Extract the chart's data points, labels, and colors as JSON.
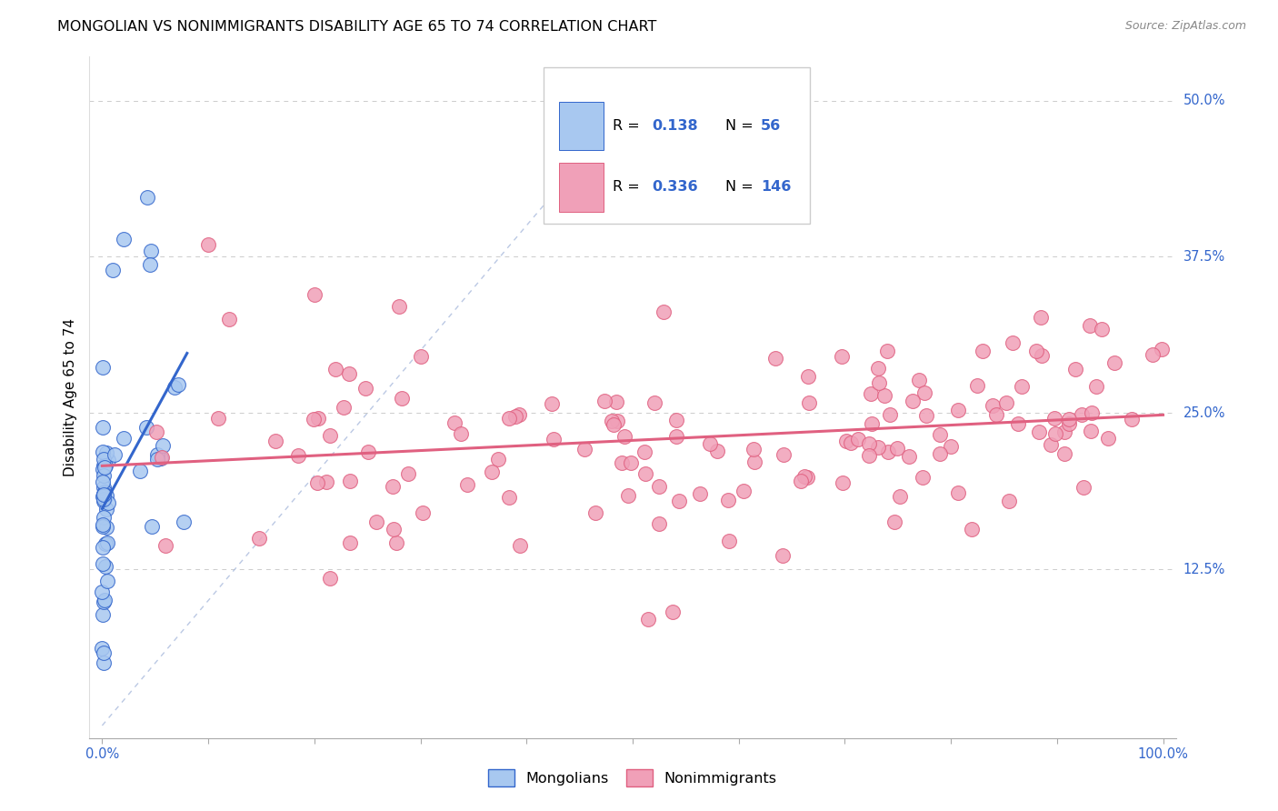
{
  "title": "MONGOLIAN VS NONIMMIGRANTS DISABILITY AGE 65 TO 74 CORRELATION CHART",
  "source": "Source: ZipAtlas.com",
  "ylabel": "Disability Age 65 to 74",
  "xlim": [
    0.0,
    1.0
  ],
  "ylim": [
    0.0,
    0.52
  ],
  "yticks": [
    0.0,
    0.125,
    0.25,
    0.375,
    0.5
  ],
  "ytick_labels": [
    "",
    "12.5%",
    "25.0%",
    "37.5%",
    "50.0%"
  ],
  "xticks": [
    0.0,
    0.1,
    0.2,
    0.3,
    0.4,
    0.5,
    0.6,
    0.7,
    0.8,
    0.9,
    1.0
  ],
  "color_mongolian": "#a8c8f0",
  "color_nonimmigrant": "#f0a0b8",
  "color_trend_mongolian": "#3366cc",
  "color_trend_nonimmigrant": "#e06080",
  "color_refline": "#bbccdd",
  "title_fontsize": 11.5,
  "source_fontsize": 9,
  "tick_label_color": "#3366cc",
  "axis_tick_color": "#3366cc"
}
